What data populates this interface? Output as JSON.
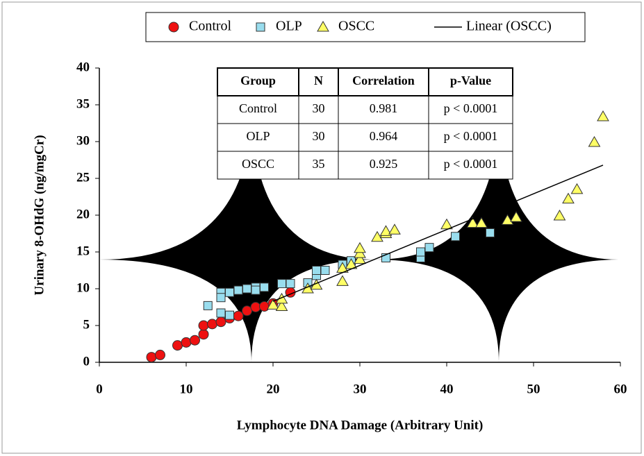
{
  "chart_data": {
    "type": "scatter",
    "x_label": "Lymphocyte DNA  Damage (Arbitrary Unit)",
    "y_label": "Urinary 8-OHdG  (ng/mgCr)",
    "xlim": [
      0,
      60
    ],
    "xticks": [
      0,
      10,
      20,
      30,
      40,
      50,
      60
    ],
    "ylim": [
      0,
      40
    ],
    "yticks": [
      0,
      5,
      10,
      15,
      20,
      25,
      30,
      35,
      40
    ],
    "series": [
      {
        "name": "Control",
        "marker": "circle",
        "color": "#ee1111",
        "x": [
          6,
          7,
          9,
          10,
          11,
          12,
          12,
          13,
          14,
          15,
          16,
          17,
          18,
          19,
          20,
          22
        ],
        "values": [
          0.7,
          1.0,
          2.3,
          2.7,
          3.0,
          3.8,
          5.0,
          5.2,
          5.5,
          6.0,
          6.3,
          7.0,
          7.5,
          7.6,
          8.0,
          9.5
        ]
      },
      {
        "name": "OLP",
        "marker": "square",
        "color": "#99ddee",
        "x": [
          12.5,
          14,
          14,
          14,
          15,
          15,
          16,
          17,
          18,
          18,
          19,
          21,
          22,
          24,
          25,
          25,
          26,
          28,
          29,
          33,
          37,
          37,
          38,
          41,
          45
        ],
        "values": [
          7.7,
          9.5,
          8.8,
          6.7,
          6.4,
          9.5,
          9.8,
          10.0,
          10.2,
          9.8,
          10.2,
          10.7,
          10.7,
          10.8,
          11.8,
          12.5,
          12.5,
          13.3,
          13.8,
          14.2,
          14.2,
          15.0,
          15.6,
          17.1,
          17.6
        ]
      },
      {
        "name": "OSCC",
        "marker": "triangle",
        "color": "#ffff66",
        "x": [
          20,
          21,
          21,
          24,
          25,
          28,
          28,
          29,
          30,
          30,
          30,
          32,
          33,
          33,
          34,
          40,
          43,
          44,
          47,
          48,
          53,
          54,
          55,
          57,
          58
        ],
        "values": [
          7.8,
          7.6,
          8.6,
          10.0,
          10.5,
          11.0,
          12.8,
          13.3,
          14.0,
          14.8,
          15.5,
          17.0,
          17.5,
          17.8,
          18.0,
          18.7,
          18.9,
          18.9,
          19.3,
          19.7,
          19.9,
          22.2,
          23.5,
          29.9,
          33.4
        ]
      },
      {
        "name": "Linear (OSCC)",
        "marker": "line",
        "color": "#000000",
        "x": [
          20,
          58
        ],
        "values": [
          8.3,
          26.8
        ]
      }
    ],
    "table": {
      "header": [
        "Group",
        "N",
        "Correlation",
        "p-Value"
      ],
      "rows": [
        [
          "Control",
          "30",
          "0.981",
          "p < 0.0001"
        ],
        [
          "OLP",
          "30",
          "0.964",
          "p < 0.0001"
        ],
        [
          "OSCC",
          "35",
          "0.925",
          "p < 0.0001"
        ]
      ]
    }
  }
}
